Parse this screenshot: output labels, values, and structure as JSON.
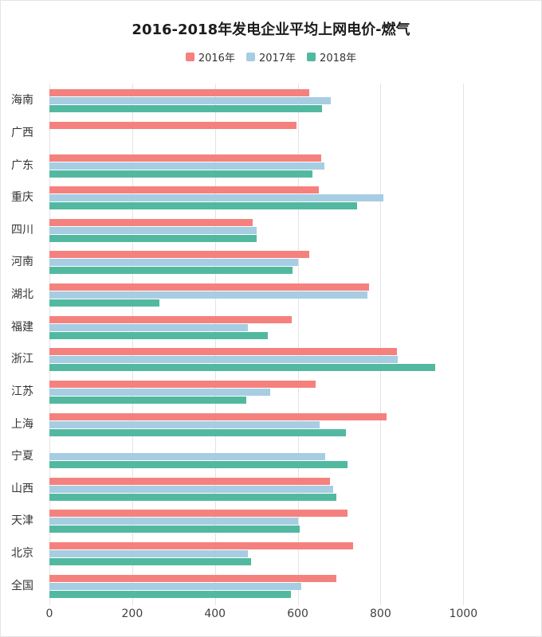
{
  "chart_data": {
    "type": "bar",
    "orientation": "horizontal",
    "title": "2016-2018年发电企业平均上网电价-燃气",
    "categories": [
      "海南",
      "广西",
      "广东",
      "重庆",
      "四川",
      "河南",
      "湖北",
      "福建",
      "浙江",
      "江苏",
      "上海",
      "宁夏",
      "山西",
      "天津",
      "北京",
      "全国"
    ],
    "series": [
      {
        "name": "2016年",
        "color": "#F5817E",
        "values": [
          627,
          596,
          656,
          650,
          490,
          627,
          772,
          586,
          839,
          643,
          815,
          null,
          677,
          720,
          733,
          694
        ]
      },
      {
        "name": "2017年",
        "color": "#A7CDE2",
        "values": [
          679,
          null,
          665,
          806,
          501,
          600,
          768,
          480,
          842,
          534,
          652,
          667,
          685,
          600,
          480,
          608
        ]
      },
      {
        "name": "2018年",
        "color": "#52B9A0",
        "values": [
          658,
          null,
          635,
          744,
          500,
          588,
          266,
          527,
          932,
          476,
          716,
          720,
          694,
          604,
          488,
          583
        ]
      }
    ],
    "x_ticks": [
      0,
      200,
      400,
      600,
      800,
      1000
    ],
    "xlim": [
      0,
      1100
    ],
    "ylabel": "",
    "xlabel": "",
    "legend_position": "top",
    "grid": "vertical"
  }
}
